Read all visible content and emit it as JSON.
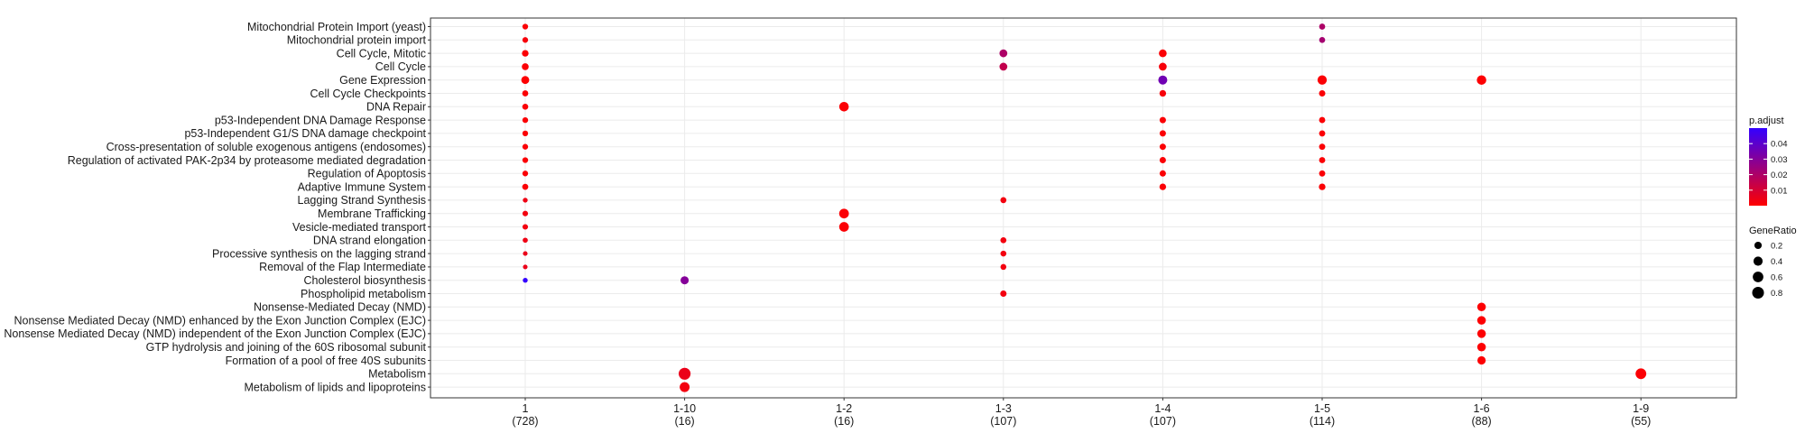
{
  "chart_data": {
    "type": "scatter",
    "title": "",
    "xlabel": "",
    "ylabel": "",
    "clusters": [
      {
        "name": "1",
        "count": "(728)"
      },
      {
        "name": "1-10",
        "count": "(16)"
      },
      {
        "name": "1-2",
        "count": "(16)"
      },
      {
        "name": "1-3",
        "count": "(107)"
      },
      {
        "name": "1-4",
        "count": "(107)"
      },
      {
        "name": "1-5",
        "count": "(114)"
      },
      {
        "name": "1-6",
        "count": "(88)"
      },
      {
        "name": "1-9",
        "count": "(55)"
      }
    ],
    "terms": [
      "Mitochondrial Protein Import (yeast)",
      "Mitochondrial protein import",
      "Cell Cycle, Mitotic",
      "Cell Cycle",
      "Gene Expression",
      "Cell Cycle Checkpoints",
      "DNA Repair",
      "p53-Independent DNA Damage Response",
      "p53-Independent G1/S DNA damage checkpoint",
      "Cross-presentation of soluble exogenous antigens (endosomes)",
      "Regulation of activated PAK-2p34 by proteasome mediated degradation",
      "Regulation of Apoptosis",
      "Adaptive Immune System",
      "Lagging Strand Synthesis",
      "Membrane Trafficking",
      "Vesicle-mediated transport",
      "DNA strand elongation",
      "Processive synthesis on the lagging strand",
      "Removal of the Flap Intermediate",
      "Cholesterol biosynthesis",
      "Phospholipid metabolism",
      "Nonsense-Mediated Decay (NMD)",
      "Nonsense Mediated Decay (NMD) enhanced by the Exon Junction Complex (EJC)",
      "Nonsense Mediated Decay (NMD) independent of the Exon Junction Complex (EJC)",
      "GTP hydrolysis and joining of the 60S ribosomal subunit",
      "Formation of a pool of free 40S subunits",
      "Metabolism",
      "Metabolism of lipids and lipoproteins"
    ],
    "points": [
      {
        "cluster": "1",
        "term": "Mitochondrial Protein Import (yeast)",
        "gene_ratio": 0.08,
        "p_adjust": 0.001
      },
      {
        "cluster": "1",
        "term": "Mitochondrial protein import",
        "gene_ratio": 0.08,
        "p_adjust": 0.002
      },
      {
        "cluster": "1",
        "term": "Cell Cycle, Mitotic",
        "gene_ratio": 0.14,
        "p_adjust": 0.001
      },
      {
        "cluster": "1",
        "term": "Cell Cycle",
        "gene_ratio": 0.16,
        "p_adjust": 0.001
      },
      {
        "cluster": "1",
        "term": "Gene Expression",
        "gene_ratio": 0.26,
        "p_adjust": 0.0005
      },
      {
        "cluster": "1",
        "term": "Cell Cycle Checkpoints",
        "gene_ratio": 0.1,
        "p_adjust": 0.001
      },
      {
        "cluster": "1",
        "term": "DNA Repair",
        "gene_ratio": 0.1,
        "p_adjust": 0.001
      },
      {
        "cluster": "1",
        "term": "p53-Independent DNA Damage Response",
        "gene_ratio": 0.08,
        "p_adjust": 0.001
      },
      {
        "cluster": "1",
        "term": "p53-Independent G1/S DNA damage checkpoint",
        "gene_ratio": 0.08,
        "p_adjust": 0.001
      },
      {
        "cluster": "1",
        "term": "Cross-presentation of soluble exogenous antigens (endosomes)",
        "gene_ratio": 0.08,
        "p_adjust": 0.001
      },
      {
        "cluster": "1",
        "term": "Regulation of activated PAK-2p34 by proteasome mediated degradation",
        "gene_ratio": 0.08,
        "p_adjust": 0.001
      },
      {
        "cluster": "1",
        "term": "Regulation of Apoptosis",
        "gene_ratio": 0.08,
        "p_adjust": 0.001
      },
      {
        "cluster": "1",
        "term": "Adaptive Immune System",
        "gene_ratio": 0.1,
        "p_adjust": 0.001
      },
      {
        "cluster": "1",
        "term": "Lagging Strand Synthesis",
        "gene_ratio": 0.04,
        "p_adjust": 0.004
      },
      {
        "cluster": "1",
        "term": "Membrane Trafficking",
        "gene_ratio": 0.07,
        "p_adjust": 0.003
      },
      {
        "cluster": "1",
        "term": "Vesicle-mediated transport",
        "gene_ratio": 0.07,
        "p_adjust": 0.003
      },
      {
        "cluster": "1",
        "term": "DNA strand elongation",
        "gene_ratio": 0.05,
        "p_adjust": 0.004
      },
      {
        "cluster": "1",
        "term": "Processive synthesis on the lagging strand",
        "gene_ratio": 0.03,
        "p_adjust": 0.005
      },
      {
        "cluster": "1",
        "term": "Removal of the Flap Intermediate",
        "gene_ratio": 0.03,
        "p_adjust": 0.005
      },
      {
        "cluster": "1",
        "term": "Cholesterol biosynthesis",
        "gene_ratio": 0.04,
        "p_adjust": 0.05
      },
      {
        "cluster": "1-10",
        "term": "Cholesterol biosynthesis",
        "gene_ratio": 0.28,
        "p_adjust": 0.03
      },
      {
        "cluster": "1-10",
        "term": "Metabolism",
        "gene_ratio": 0.82,
        "p_adjust": 0.005
      },
      {
        "cluster": "1-10",
        "term": "Metabolism of lipids and lipoproteins",
        "gene_ratio": 0.5,
        "p_adjust": 0.003
      },
      {
        "cluster": "1-2",
        "term": "DNA Repair",
        "gene_ratio": 0.45,
        "p_adjust": 0.001
      },
      {
        "cluster": "1-2",
        "term": "Membrane Trafficking",
        "gene_ratio": 0.47,
        "p_adjust": 0.001
      },
      {
        "cluster": "1-2",
        "term": "Vesicle-mediated transport",
        "gene_ratio": 0.47,
        "p_adjust": 0.001
      },
      {
        "cluster": "1-3",
        "term": "Cell Cycle, Mitotic",
        "gene_ratio": 0.25,
        "p_adjust": 0.02
      },
      {
        "cluster": "1-3",
        "term": "Cell Cycle",
        "gene_ratio": 0.25,
        "p_adjust": 0.015
      },
      {
        "cluster": "1-3",
        "term": "Lagging Strand Synthesis",
        "gene_ratio": 0.1,
        "p_adjust": 0.003
      },
      {
        "cluster": "1-3",
        "term": "DNA strand elongation",
        "gene_ratio": 0.1,
        "p_adjust": 0.003
      },
      {
        "cluster": "1-3",
        "term": "Processive synthesis on the lagging strand",
        "gene_ratio": 0.09,
        "p_adjust": 0.003
      },
      {
        "cluster": "1-3",
        "term": "Removal of the Flap Intermediate",
        "gene_ratio": 0.09,
        "p_adjust": 0.003
      },
      {
        "cluster": "1-3",
        "term": "Phospholipid metabolism",
        "gene_ratio": 0.12,
        "p_adjust": 0.003
      },
      {
        "cluster": "1-4",
        "term": "Cell Cycle, Mitotic",
        "gene_ratio": 0.24,
        "p_adjust": 0.001
      },
      {
        "cluster": "1-4",
        "term": "Cell Cycle",
        "gene_ratio": 0.25,
        "p_adjust": 0.002
      },
      {
        "cluster": "1-4",
        "term": "Gene Expression",
        "gene_ratio": 0.38,
        "p_adjust": 0.035
      },
      {
        "cluster": "1-4",
        "term": "Cell Cycle Checkpoints",
        "gene_ratio": 0.14,
        "p_adjust": 0.002
      },
      {
        "cluster": "1-4",
        "term": "p53-Independent DNA Damage Response",
        "gene_ratio": 0.12,
        "p_adjust": 0.001
      },
      {
        "cluster": "1-4",
        "term": "p53-Independent G1/S DNA damage checkpoint",
        "gene_ratio": 0.12,
        "p_adjust": 0.001
      },
      {
        "cluster": "1-4",
        "term": "Cross-presentation of soluble exogenous antigens (endosomes)",
        "gene_ratio": 0.12,
        "p_adjust": 0.001
      },
      {
        "cluster": "1-4",
        "term": "Regulation of activated PAK-2p34 by proteasome mediated degradation",
        "gene_ratio": 0.12,
        "p_adjust": 0.001
      },
      {
        "cluster": "1-4",
        "term": "Regulation of Apoptosis",
        "gene_ratio": 0.12,
        "p_adjust": 0.001
      },
      {
        "cluster": "1-4",
        "term": "Adaptive Immune System",
        "gene_ratio": 0.14,
        "p_adjust": 0.001
      },
      {
        "cluster": "1-5",
        "term": "Mitochondrial Protein Import (yeast)",
        "gene_ratio": 0.1,
        "p_adjust": 0.02
      },
      {
        "cluster": "1-5",
        "term": "Mitochondrial protein import",
        "gene_ratio": 0.1,
        "p_adjust": 0.022
      },
      {
        "cluster": "1-5",
        "term": "Gene Expression",
        "gene_ratio": 0.42,
        "p_adjust": 0.001
      },
      {
        "cluster": "1-5",
        "term": "Cell Cycle Checkpoints",
        "gene_ratio": 0.12,
        "p_adjust": 0.001
      },
      {
        "cluster": "1-5",
        "term": "p53-Independent DNA Damage Response",
        "gene_ratio": 0.11,
        "p_adjust": 0.001
      },
      {
        "cluster": "1-5",
        "term": "p53-Independent G1/S DNA damage checkpoint",
        "gene_ratio": 0.11,
        "p_adjust": 0.001
      },
      {
        "cluster": "1-5",
        "term": "Cross-presentation of soluble exogenous antigens (endosomes)",
        "gene_ratio": 0.11,
        "p_adjust": 0.001
      },
      {
        "cluster": "1-5",
        "term": "Regulation of activated PAK-2p34 by proteasome mediated degradation",
        "gene_ratio": 0.11,
        "p_adjust": 0.001
      },
      {
        "cluster": "1-5",
        "term": "Regulation of Apoptosis",
        "gene_ratio": 0.11,
        "p_adjust": 0.001
      },
      {
        "cluster": "1-5",
        "term": "Adaptive Immune System",
        "gene_ratio": 0.14,
        "p_adjust": 0.001
      },
      {
        "cluster": "1-6",
        "term": "Gene Expression",
        "gene_ratio": 0.44,
        "p_adjust": 0.0005
      },
      {
        "cluster": "1-6",
        "term": "Nonsense-Mediated Decay (NMD)",
        "gene_ratio": 0.33,
        "p_adjust": 0.0005
      },
      {
        "cluster": "1-6",
        "term": "Nonsense Mediated Decay (NMD) enhanced by the Exon Junction Complex (EJC)",
        "gene_ratio": 0.33,
        "p_adjust": 0.0005
      },
      {
        "cluster": "1-6",
        "term": "Nonsense Mediated Decay (NMD) independent of the Exon Junction Complex (EJC)",
        "gene_ratio": 0.33,
        "p_adjust": 0.0005
      },
      {
        "cluster": "1-6",
        "term": "GTP hydrolysis and joining of the 60S ribosomal subunit",
        "gene_ratio": 0.33,
        "p_adjust": 0.0005
      },
      {
        "cluster": "1-6",
        "term": "Formation of a pool of free 40S subunits",
        "gene_ratio": 0.3,
        "p_adjust": 0.0005
      },
      {
        "cluster": "1-9",
        "term": "Metabolism",
        "gene_ratio": 0.62,
        "p_adjust": 0.001
      }
    ],
    "legend_color": {
      "title": "p.adjust",
      "ticks": [
        "0.04",
        "0.03",
        "0.02",
        "0.01"
      ],
      "tick_values": [
        0.04,
        0.03,
        0.02,
        0.01
      ],
      "range": [
        0.0,
        0.05
      ],
      "low_color": "#ff0000",
      "high_color": "#3300ff"
    },
    "legend_size": {
      "title": "GeneRatio",
      "ticks": [
        "0.2",
        "0.4",
        "0.6",
        "0.8"
      ],
      "tick_values": [
        0.2,
        0.4,
        0.6,
        0.8
      ]
    },
    "grid": true,
    "legend_position": "right",
    "colors": {
      "panel_border": "#333333",
      "grid": "#ebebeb",
      "background": "#ffffff"
    }
  }
}
